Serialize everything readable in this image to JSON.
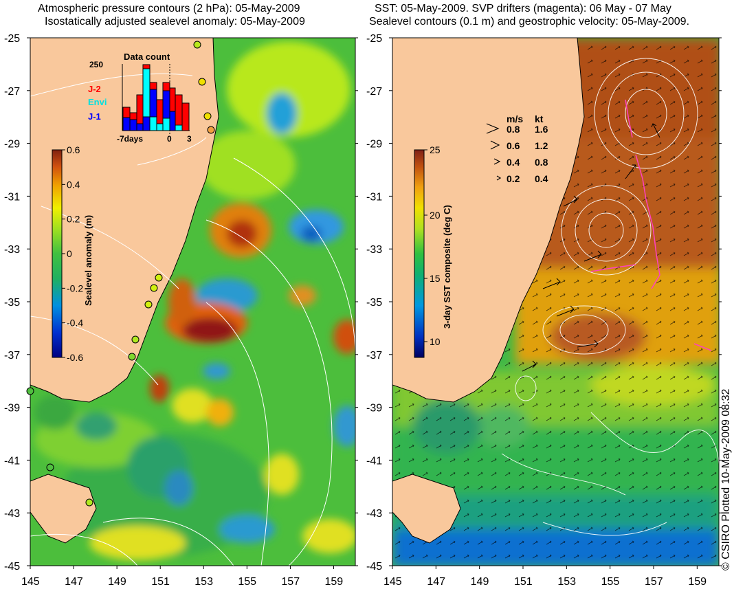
{
  "left_panel": {
    "title_line1": "Atmospheric pressure contours (2 hPa): 05-May-2009",
    "title_line2": "Isostatically adjusted sealevel anomaly: 05-May-2009",
    "y_ticks": [
      "-25",
      "-27",
      "-29",
      "-31",
      "-33",
      "-35",
      "-37",
      "-39",
      "-41",
      "-43",
      "-45"
    ],
    "x_ticks": [
      "145",
      "147",
      "149",
      "151",
      "153",
      "155",
      "157",
      "159"
    ],
    "colorbar": {
      "label": "Sealevel anomaly (m)",
      "ticks": [
        "0.6",
        "0.4",
        "0.2",
        "0",
        "-0.2",
        "-0.4",
        "-0.6"
      ]
    },
    "data_count": {
      "title": "Data count",
      "y_label": "250",
      "x_ticks": [
        "-7days",
        "0",
        "3"
      ],
      "legend": [
        {
          "label": "J-2",
          "color": "#ff0000"
        },
        {
          "label": "Envi",
          "color": "#00ffff"
        },
        {
          "label": "J-1",
          "color": "#0000ff"
        }
      ]
    }
  },
  "right_panel": {
    "title_line1": "SST: 05-May-2009. SVP drifters (magenta): 06 May - 07 May",
    "title_line2": "Sealevel contours (0.1 m) and geostrophic velocity: 05-May-2009.",
    "y_ticks": [
      "-25",
      "-27",
      "-29",
      "-31",
      "-33",
      "-35",
      "-37",
      "-39",
      "-41",
      "-43",
      "-45"
    ],
    "x_ticks": [
      "145",
      "147",
      "149",
      "151",
      "153",
      "155",
      "157",
      "159"
    ],
    "colorbar": {
      "label": "3-day SST composite (deg C)",
      "ticks": [
        "25",
        "20",
        "15",
        "10"
      ]
    },
    "velocity_legend": {
      "header_ms": "m/s",
      "header_kt": "kt",
      "rows": [
        {
          "ms": "0.8",
          "kt": "1.6"
        },
        {
          "ms": "0.6",
          "kt": "1.2"
        },
        {
          "ms": "0.4",
          "kt": "0.8"
        },
        {
          "ms": "0.2",
          "kt": "0.4"
        }
      ]
    }
  },
  "copyright": "© CSIRO Plotted 10-May-2009 08:32",
  "colors": {
    "land": "#f9c89c",
    "coastline": "#000000",
    "contour": "#ffffff",
    "drifter": "#ff40c0"
  }
}
